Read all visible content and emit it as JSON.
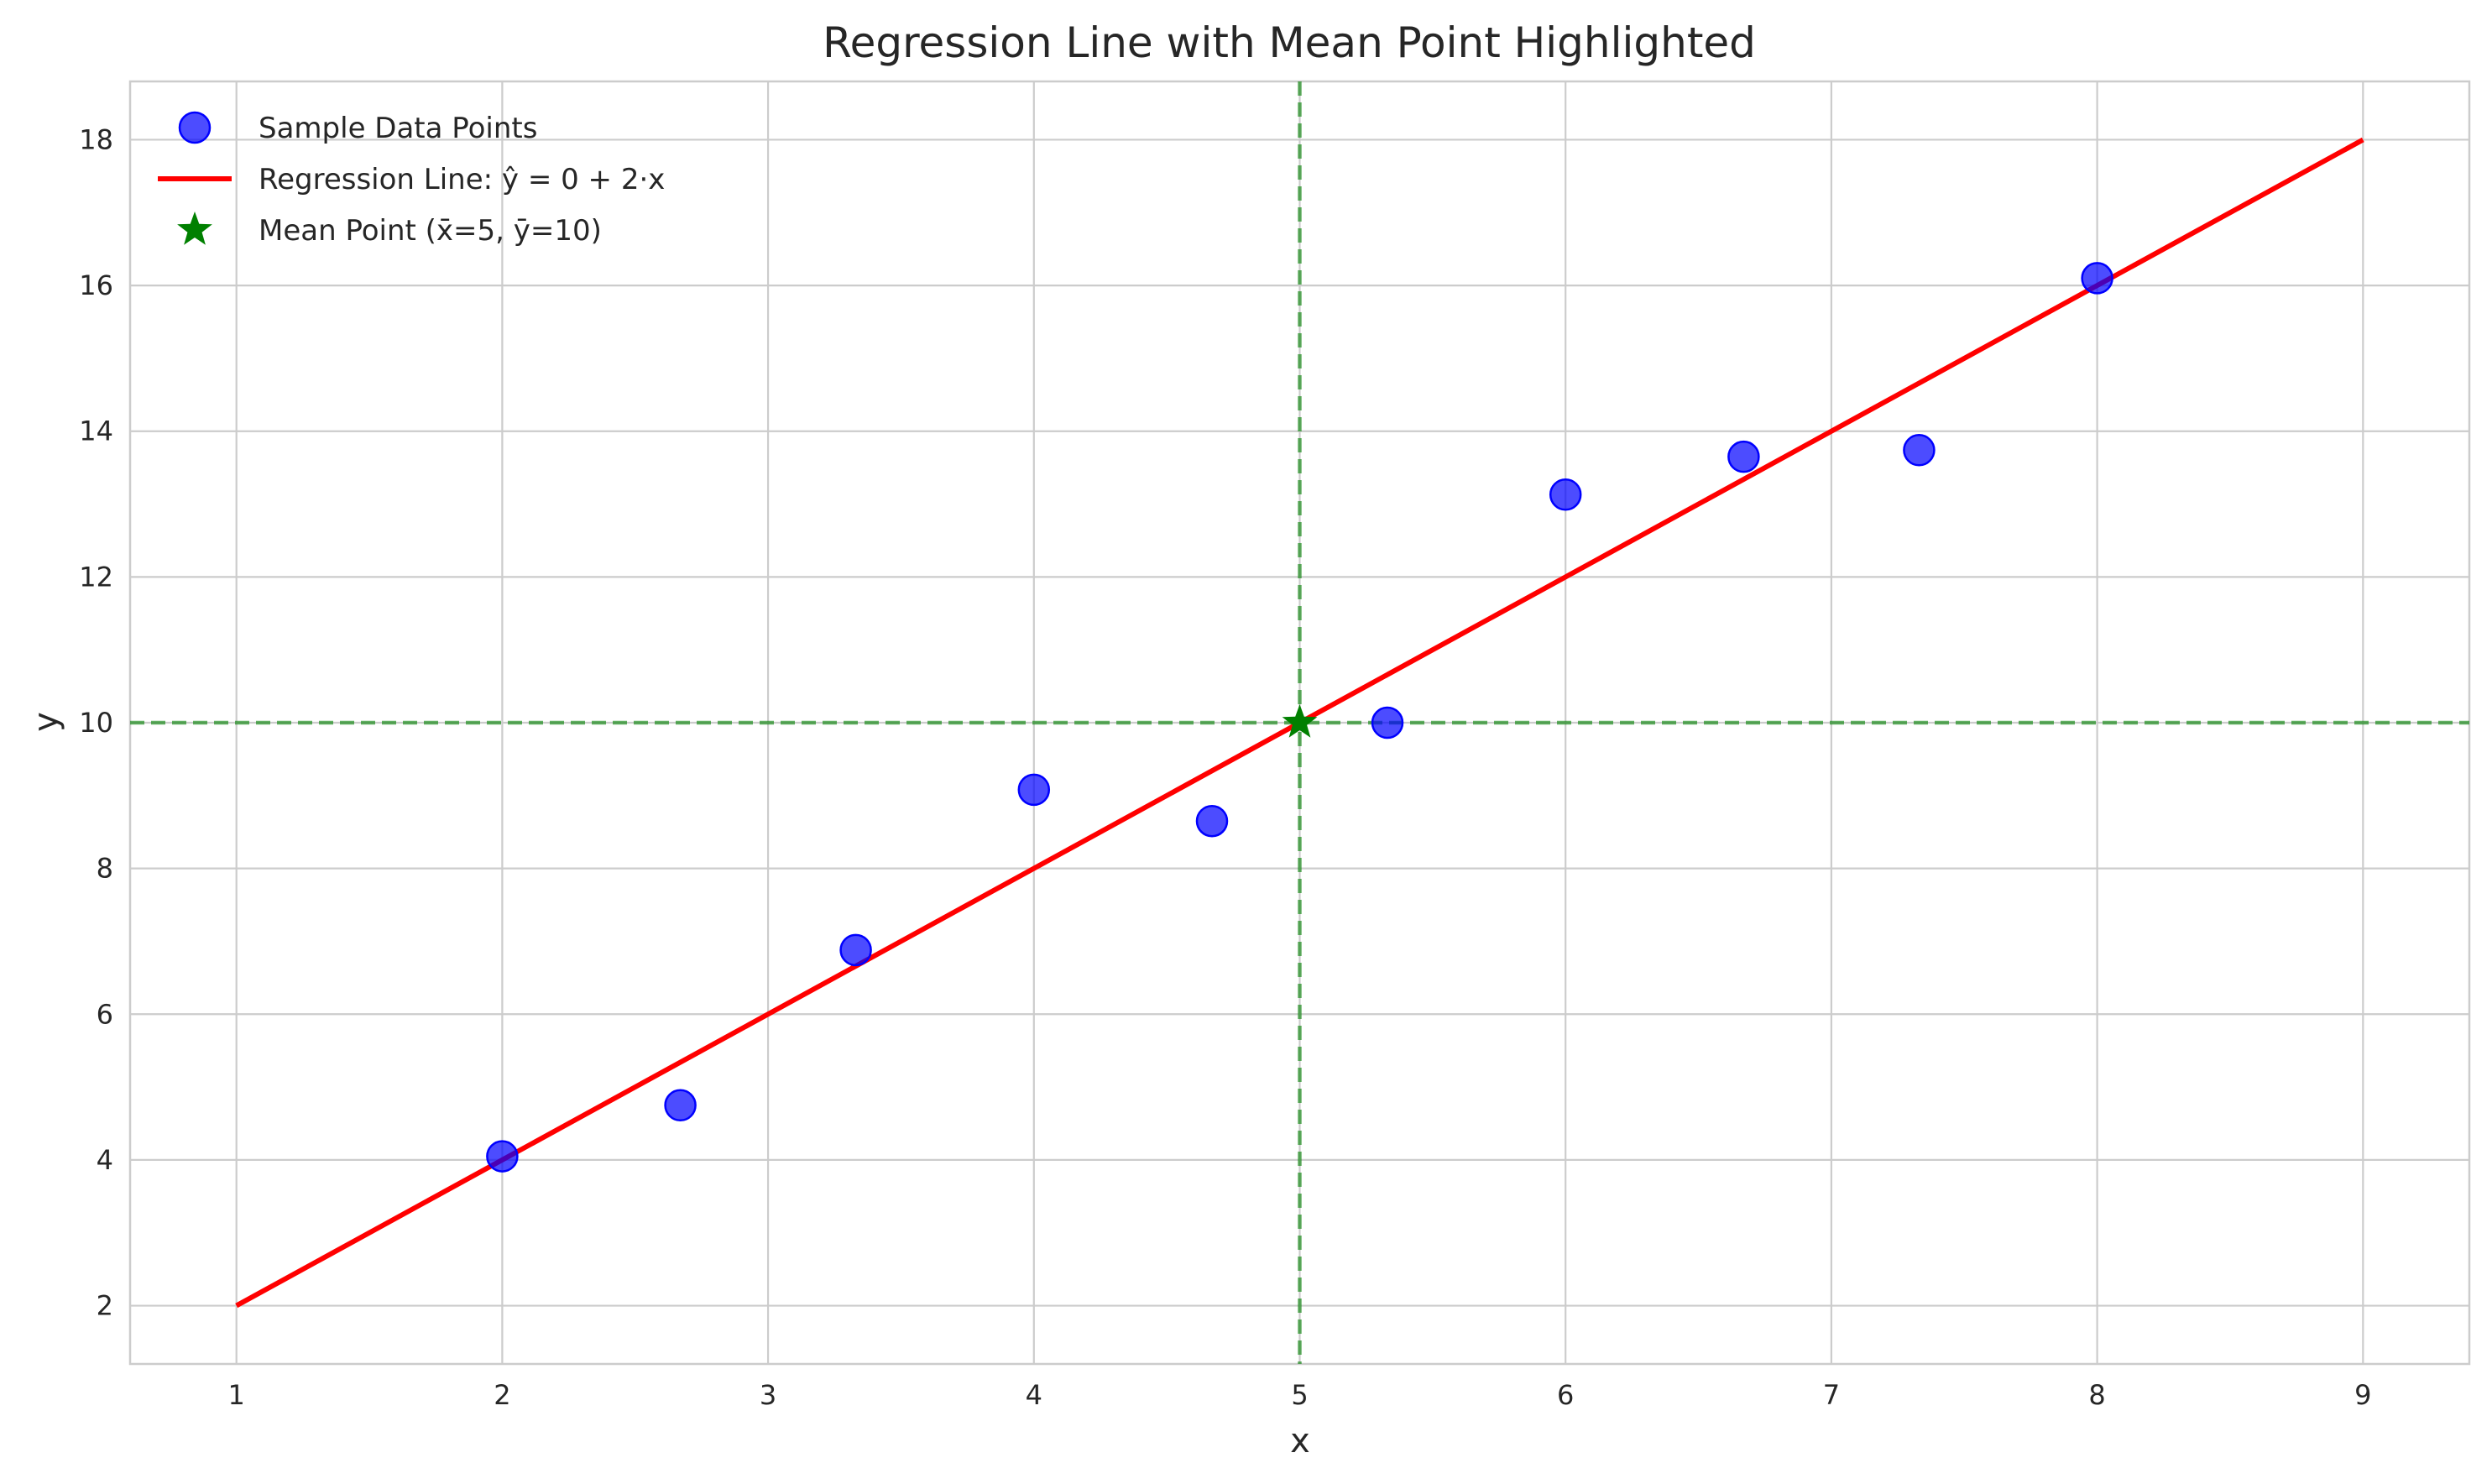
{
  "chart_data": {
    "type": "scatter",
    "title": "Regression Line with Mean Point Highlighted",
    "xlabel": "x",
    "ylabel": "y",
    "xlim": [
      0.6,
      9.4
    ],
    "ylim": [
      1.2,
      18.8
    ],
    "xticks": [
      1,
      2,
      3,
      4,
      5,
      6,
      7,
      8,
      9
    ],
    "yticks": [
      2,
      4,
      6,
      8,
      10,
      12,
      14,
      16,
      18
    ],
    "grid": true,
    "legend_position": "top-left",
    "series": [
      {
        "name": "Sample Data Points",
        "kind": "scatter",
        "color": "#0000ff",
        "points": [
          {
            "x": 2.0,
            "y": 4.05
          },
          {
            "x": 2.67,
            "y": 4.75
          },
          {
            "x": 3.33,
            "y": 6.88
          },
          {
            "x": 4.0,
            "y": 9.08
          },
          {
            "x": 4.67,
            "y": 8.65
          },
          {
            "x": 5.33,
            "y": 10.0
          },
          {
            "x": 6.0,
            "y": 13.13
          },
          {
            "x": 6.67,
            "y": 13.65
          },
          {
            "x": 7.33,
            "y": 13.74
          },
          {
            "x": 8.0,
            "y": 16.1
          }
        ]
      },
      {
        "name": "Regression Line: ŷ = 0 + 2·x",
        "kind": "line",
        "color": "#ff0000",
        "points": [
          {
            "x": 1,
            "y": 2
          },
          {
            "x": 9,
            "y": 18
          }
        ]
      },
      {
        "name": "Mean Point (x̄=5, ȳ=10)",
        "kind": "star",
        "color": "#008000",
        "points": [
          {
            "x": 5,
            "y": 10
          }
        ]
      }
    ],
    "reference_lines": [
      {
        "orientation": "vertical",
        "x": 5,
        "color": "#008000",
        "style": "dashed"
      },
      {
        "orientation": "horizontal",
        "y": 10,
        "color": "#008000",
        "style": "dashed"
      }
    ]
  }
}
